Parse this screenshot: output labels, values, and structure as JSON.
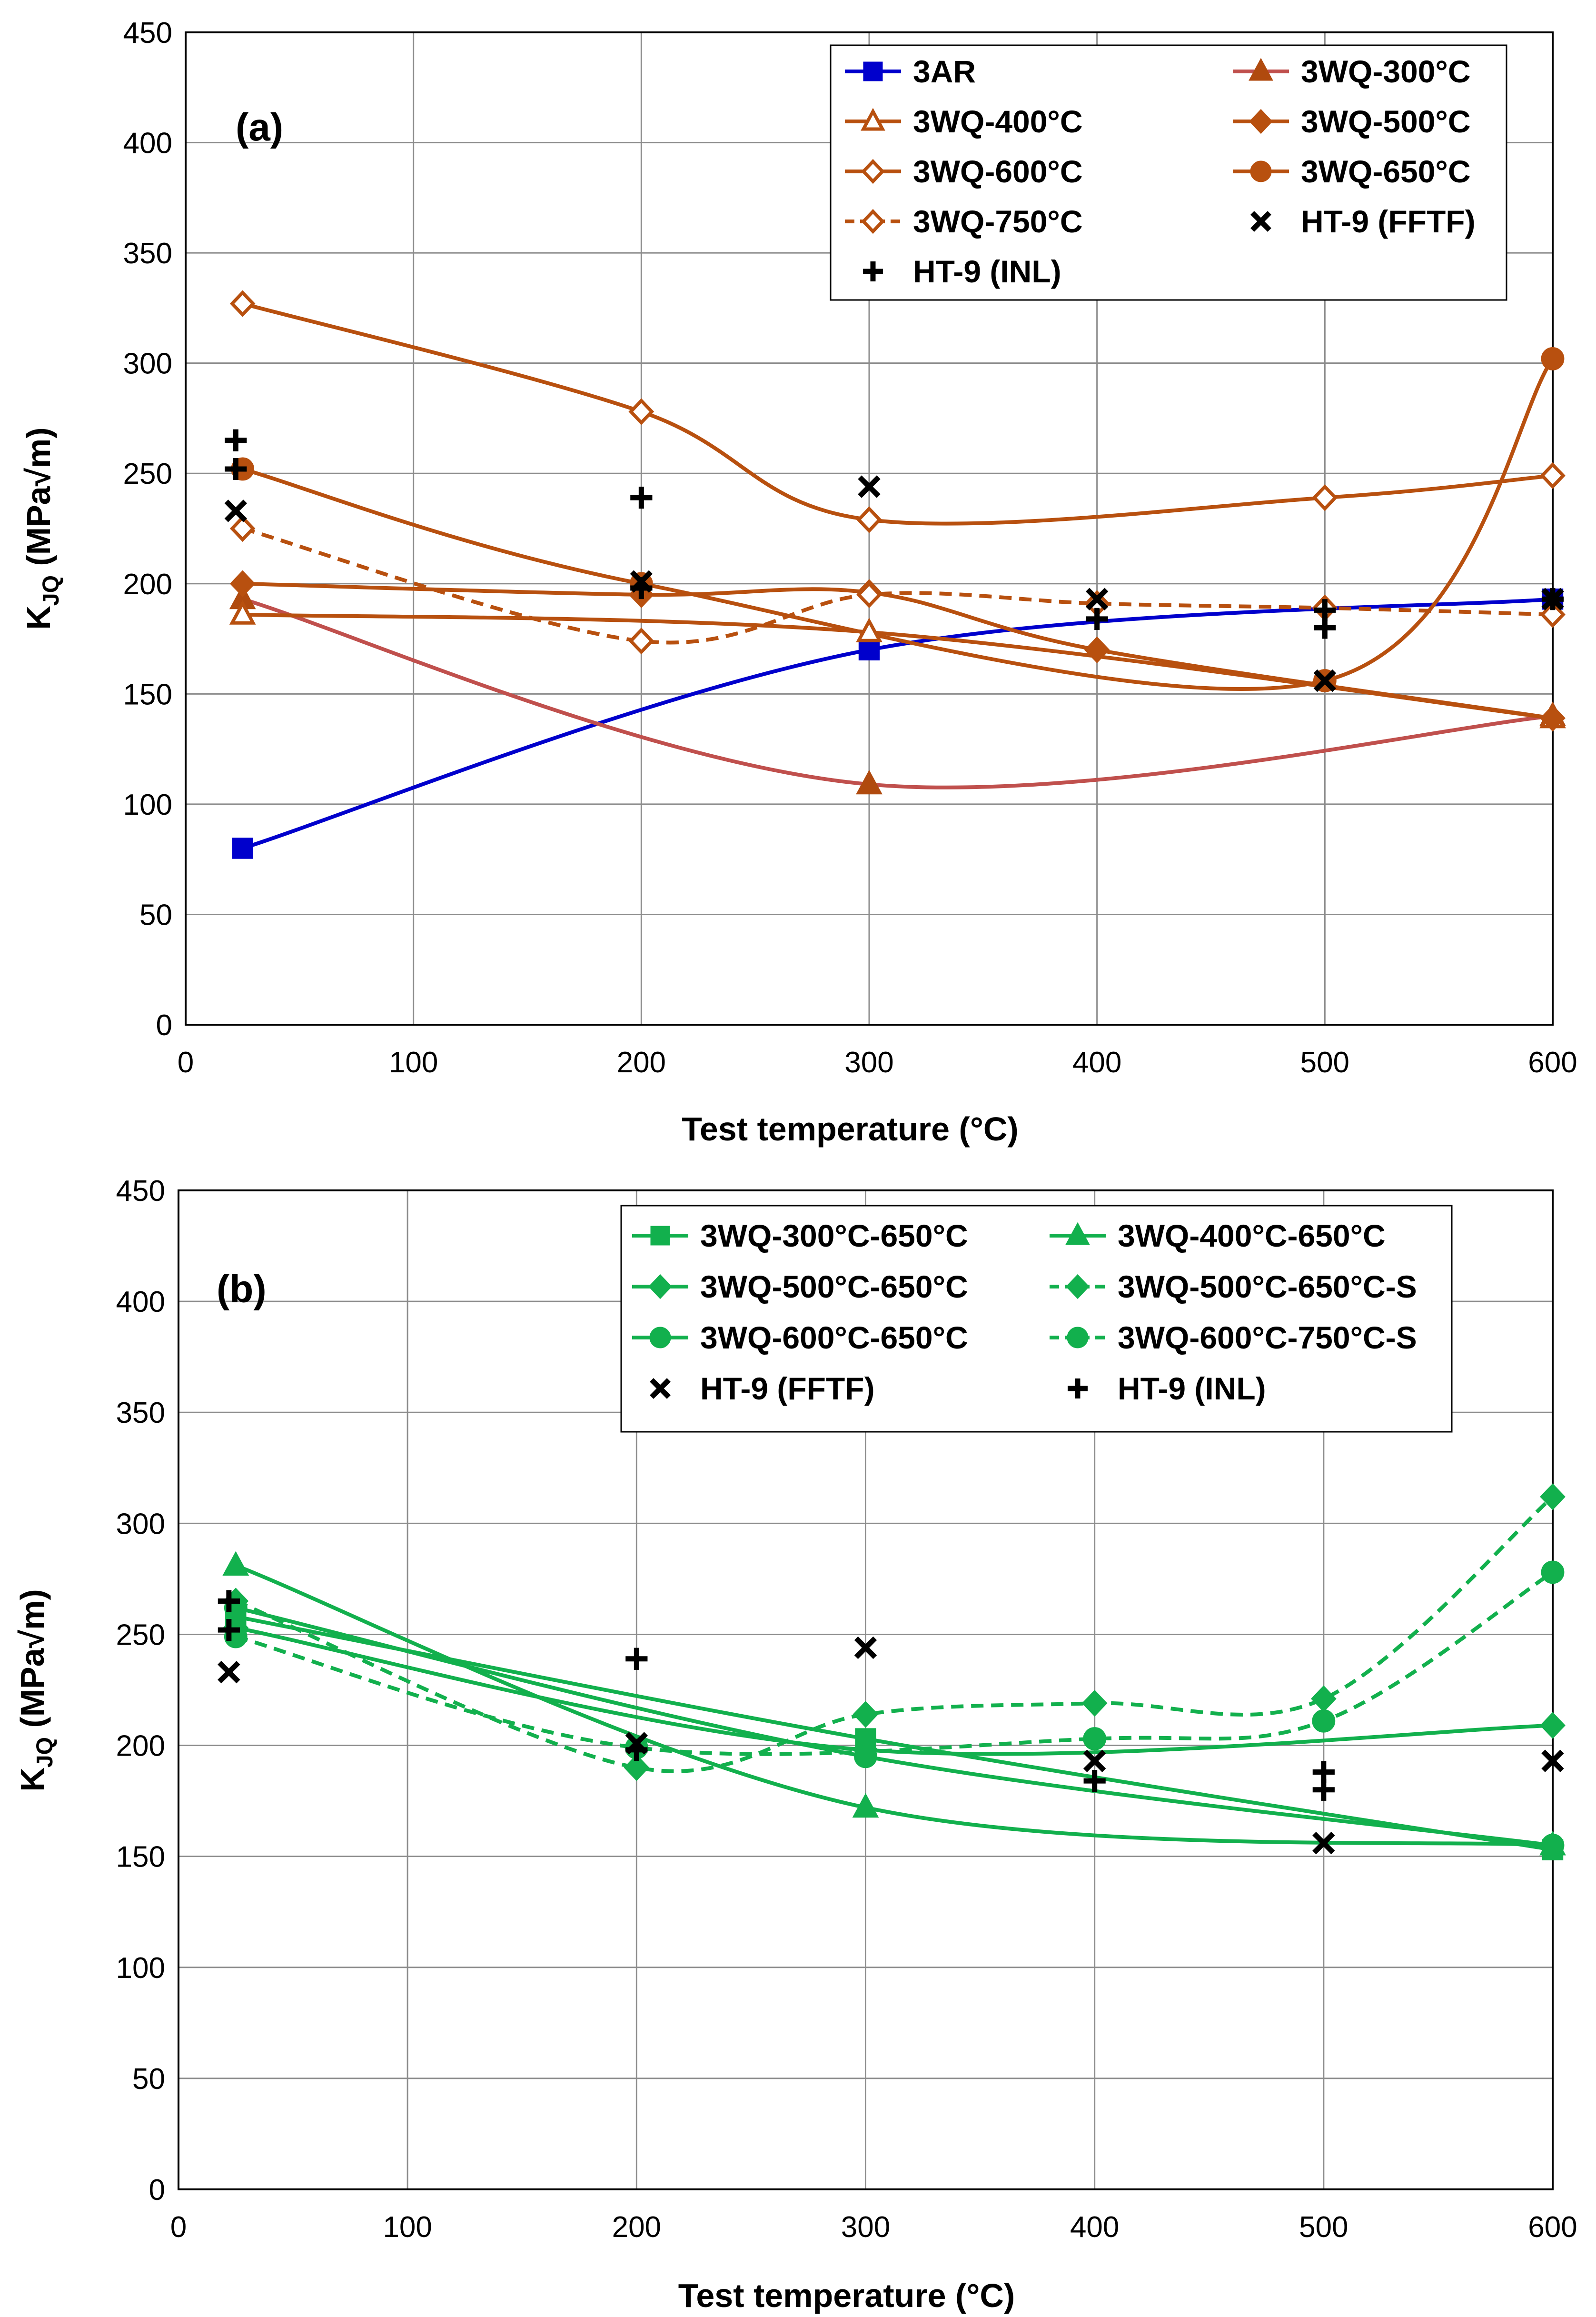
{
  "chart_data": [
    {
      "type": "line",
      "panel_label": "(a)",
      "xlabel": "Test temperature (°C)",
      "ylabel_main": "K",
      "ylabel_sub": "JQ",
      "ylabel_unit": " (MPa√m)",
      "xlim": [
        0,
        600
      ],
      "ylim": [
        0,
        450
      ],
      "x_ticks": [
        "0",
        "100",
        "200",
        "300",
        "400",
        "500",
        "600"
      ],
      "y_ticks": [
        "0",
        "50",
        "100",
        "150",
        "200",
        "250",
        "300",
        "350",
        "400",
        "450"
      ],
      "grid": true,
      "legend_position": "top-right",
      "series": [
        {
          "name": "3AR",
          "color": "#0000cc",
          "marker": "square",
          "filled": true,
          "dashed": false,
          "x": [
            25,
            300,
            600
          ],
          "y": [
            80,
            170,
            193
          ]
        },
        {
          "name": "3WQ-300°C",
          "color": "#c0504d",
          "marker_color": "#b04a0e",
          "marker": "triangle",
          "filled": true,
          "dashed": false,
          "x": [
            25,
            300,
            600
          ],
          "y": [
            193,
            109,
            140
          ]
        },
        {
          "name": "3WQ-400°C",
          "color": "#b8500f",
          "marker": "triangle",
          "filled": false,
          "dashed": false,
          "x": [
            25,
            300,
            600
          ],
          "y": [
            186,
            178,
            139
          ]
        },
        {
          "name": "3WQ-500°C",
          "color": "#b8500f",
          "marker": "diamond",
          "filled": true,
          "dashed": false,
          "x": [
            25,
            200,
            300,
            400,
            600
          ],
          "y": [
            200,
            195,
            196,
            170,
            139
          ]
        },
        {
          "name": "3WQ-600°C",
          "color": "#b8500f",
          "marker": "diamond",
          "filled": false,
          "dashed": false,
          "x": [
            25,
            200,
            300,
            500,
            600
          ],
          "y": [
            327,
            278,
            229,
            239,
            249
          ]
        },
        {
          "name": "3WQ-650°C",
          "color": "#b8500f",
          "marker": "circle",
          "filled": true,
          "dashed": false,
          "x": [
            25,
            200,
            500,
            600
          ],
          "y": [
            252,
            200,
            156,
            302
          ]
        },
        {
          "name": "3WQ-750°C",
          "color": "#b8500f",
          "marker": "diamond",
          "filled": false,
          "dashed": true,
          "x": [
            25,
            200,
            300,
            400,
            500,
            600
          ],
          "y": [
            225,
            174,
            195,
            191,
            189,
            186
          ]
        },
        {
          "name": "HT-9 (FFTF)",
          "color": "#000000",
          "marker": "x",
          "filled": true,
          "dashed": false,
          "line": false,
          "x": [
            22,
            200,
            300,
            400,
            500,
            600
          ],
          "y": [
            233,
            201,
            244,
            193,
            156,
            193
          ]
        },
        {
          "name": "HT-9 (INL)",
          "color": "#000000",
          "marker": "plus",
          "filled": true,
          "dashed": false,
          "line": false,
          "x": [
            22,
            22,
            200,
            200,
            400,
            500,
            500,
            600
          ],
          "y": [
            265,
            252,
            239,
            198,
            184,
            188,
            180,
            193
          ]
        }
      ]
    },
    {
      "type": "line",
      "panel_label": "(b)",
      "xlabel": "Test temperature (°C)",
      "ylabel_main": "K",
      "ylabel_sub": "JQ",
      "ylabel_unit": " (MPa√m)",
      "xlim": [
        0,
        600
      ],
      "ylim": [
        0,
        450
      ],
      "x_ticks": [
        "0",
        "100",
        "200",
        "300",
        "400",
        "500",
        "600"
      ],
      "y_ticks": [
        "0",
        "50",
        "100",
        "150",
        "200",
        "250",
        "300",
        "350",
        "400",
        "450"
      ],
      "grid": true,
      "legend_position": "top-right",
      "series": [
        {
          "name": "3WQ-300°C-650°C",
          "color": "#12b04d",
          "marker": "square",
          "filled": true,
          "dashed": false,
          "x": [
            25,
            300,
            600
          ],
          "y": [
            258,
            203,
            153
          ]
        },
        {
          "name": "3WQ-400°C-650°C",
          "color": "#12b04d",
          "marker": "triangle",
          "filled": true,
          "dashed": false,
          "x": [
            25,
            300,
            600
          ],
          "y": [
            281,
            172,
            155
          ]
        },
        {
          "name": "3WQ-500°C-650°C",
          "color": "#12b04d",
          "marker": "diamond",
          "filled": true,
          "dashed": false,
          "x": [
            25,
            300,
            600
          ],
          "y": [
            253,
            198,
            209
          ]
        },
        {
          "name": "3WQ-500°C-650°C-S",
          "color": "#12b04d",
          "marker": "diamond",
          "filled": true,
          "dashed": true,
          "x": [
            25,
            200,
            300,
            400,
            500,
            600
          ],
          "y": [
            265,
            190,
            214,
            219,
            221,
            312
          ]
        },
        {
          "name": "3WQ-600°C-650°C",
          "color": "#12b04d",
          "marker": "circle",
          "filled": true,
          "dashed": false,
          "x": [
            25,
            300,
            600
          ],
          "y": [
            262,
            195,
            155
          ]
        },
        {
          "name": "3WQ-600°C-750°C-S",
          "color": "#12b04d",
          "marker": "circle",
          "filled": true,
          "dashed": true,
          "x": [
            25,
            200,
            400,
            500,
            600
          ],
          "y": [
            249,
            199,
            203,
            211,
            278
          ]
        },
        {
          "name": "HT-9 (FFTF)",
          "color": "#000000",
          "marker": "x",
          "filled": true,
          "dashed": false,
          "line": false,
          "x": [
            22,
            200,
            300,
            400,
            500,
            600
          ],
          "y": [
            233,
            201,
            244,
            193,
            156,
            193
          ]
        },
        {
          "name": "HT-9 (INL)",
          "color": "#000000",
          "marker": "plus",
          "filled": true,
          "dashed": false,
          "line": false,
          "x": [
            22,
            22,
            200,
            200,
            400,
            500,
            500
          ],
          "y": [
            265,
            252,
            239,
            198,
            184,
            188,
            180
          ]
        }
      ]
    }
  ]
}
